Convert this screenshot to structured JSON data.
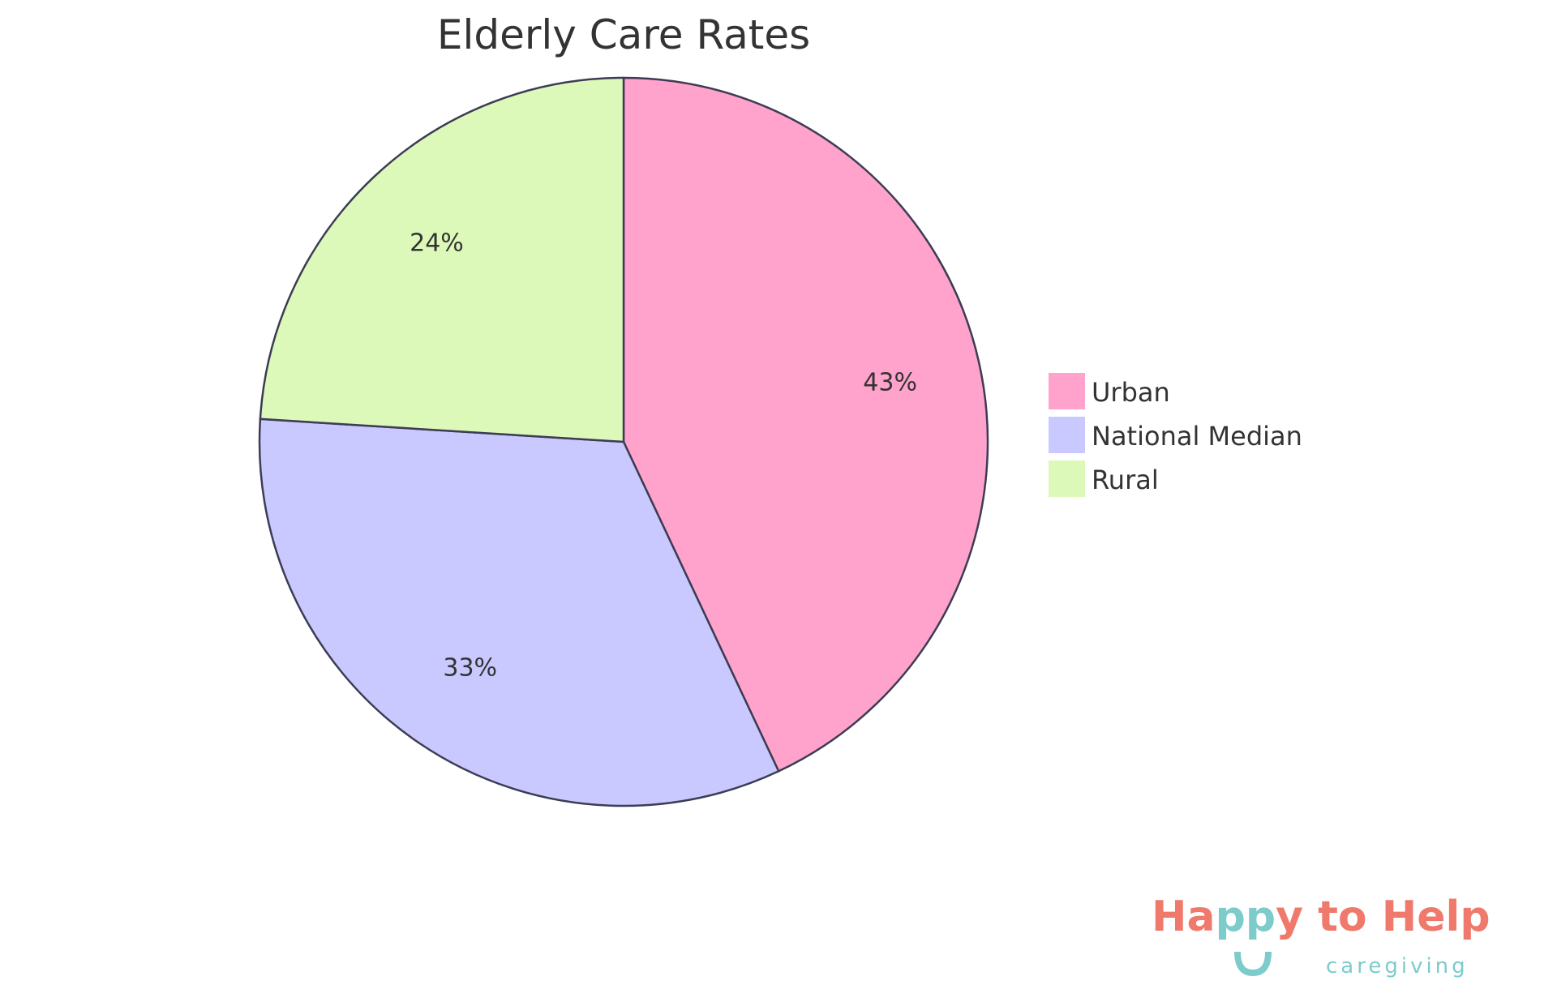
{
  "chart_data": {
    "type": "pie",
    "title": "Elderly Care Rates",
    "categories": [
      "Urban",
      "National Median",
      "Rural"
    ],
    "values": [
      43,
      33,
      24
    ],
    "labels": [
      "43%",
      "33%",
      "24%"
    ],
    "colors": [
      "#FFA3CC",
      "#C9C9FF",
      "#DCF9B9"
    ],
    "stroke_color": "#3C3C54",
    "legend_position": "right"
  },
  "logo": {
    "main_text": "Happy to Help",
    "sub_text": "caregiving",
    "colors": {
      "coral": "#EF7A6C",
      "teal": "#7ECBCB"
    }
  }
}
